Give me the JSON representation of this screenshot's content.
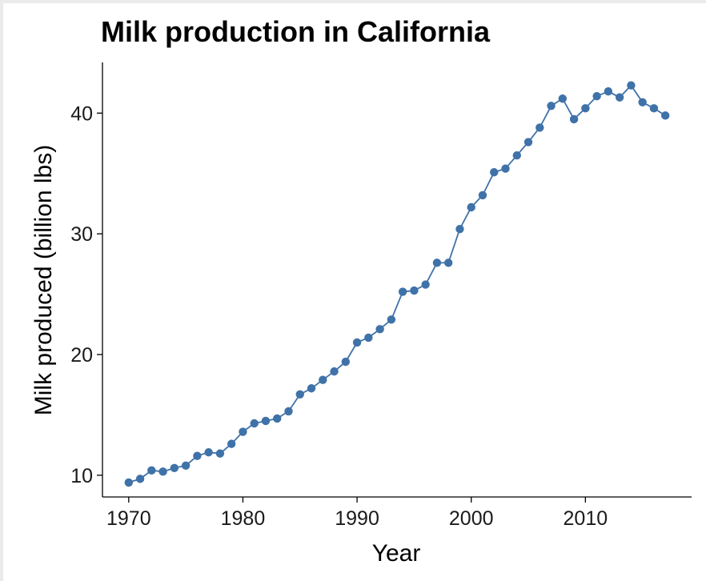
{
  "chart_data": {
    "type": "line",
    "title": "Milk production in California",
    "xlabel": "Year",
    "ylabel": "Milk produced (billion lbs)",
    "xlim": [
      1967.7,
      2019.3
    ],
    "ylim": [
      8.2,
      44.2
    ],
    "xticks": [
      1970,
      1980,
      1990,
      2000,
      2010
    ],
    "yticks": [
      10,
      20,
      30,
      40
    ],
    "grid": false,
    "legend": "none",
    "color": "#3f72a8",
    "series": [
      {
        "x": [
          1970,
          1971,
          1972,
          1973,
          1974,
          1975,
          1976,
          1977,
          1978,
          1979,
          1980,
          1981,
          1982,
          1983,
          1984,
          1985,
          1986,
          1987,
          1988,
          1989,
          1990,
          1991,
          1992,
          1993,
          1994,
          1995,
          1996,
          1997,
          1998,
          1999,
          2000,
          2001,
          2002,
          2003,
          2004,
          2005,
          2006,
          2007,
          2008,
          2009,
          2010,
          2011,
          2012,
          2013,
          2014,
          2015,
          2016,
          2017
        ],
        "values": [
          9.4,
          9.7,
          10.4,
          10.3,
          10.6,
          10.8,
          11.6,
          11.9,
          11.8,
          12.6,
          13.6,
          14.3,
          14.5,
          14.7,
          15.3,
          16.7,
          17.2,
          17.9,
          18.6,
          19.4,
          21.0,
          21.4,
          22.1,
          22.9,
          25.2,
          25.3,
          25.8,
          27.6,
          27.6,
          30.4,
          32.2,
          33.2,
          35.1,
          35.4,
          36.5,
          37.6,
          38.8,
          40.6,
          41.2,
          39.5,
          40.4,
          41.4,
          41.8,
          41.3,
          42.3,
          40.9,
          40.4,
          39.8
        ]
      }
    ]
  }
}
